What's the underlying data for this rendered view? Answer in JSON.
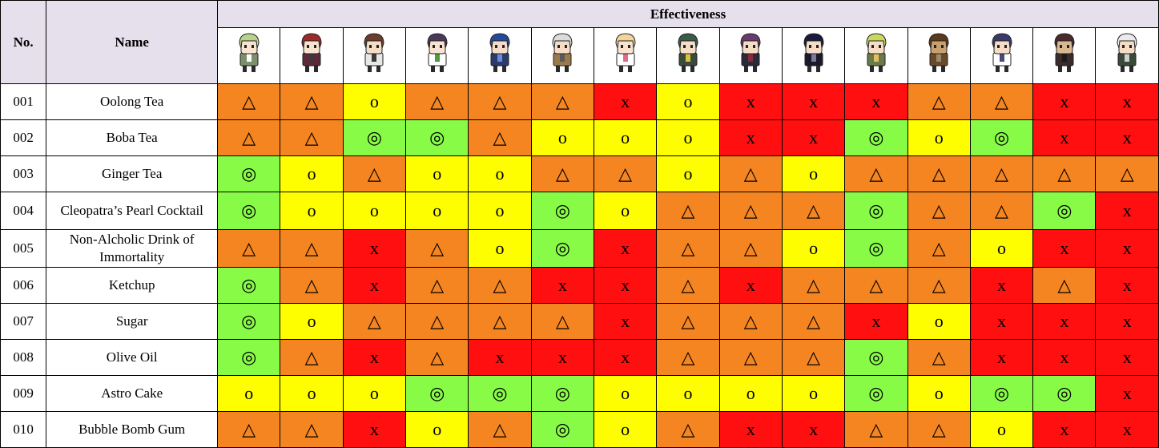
{
  "headers": {
    "no": "No.",
    "name": "Name",
    "effectiveness": "Effectiveness"
  },
  "characters": [
    {
      "icon": "character-portrait-1"
    },
    {
      "icon": "character-portrait-2"
    },
    {
      "icon": "character-portrait-3"
    },
    {
      "icon": "character-portrait-4"
    },
    {
      "icon": "character-portrait-5"
    },
    {
      "icon": "character-portrait-6"
    },
    {
      "icon": "character-portrait-7"
    },
    {
      "icon": "character-portrait-8"
    },
    {
      "icon": "character-portrait-9"
    },
    {
      "icon": "character-portrait-10"
    },
    {
      "icon": "character-portrait-11"
    },
    {
      "icon": "character-portrait-12"
    },
    {
      "icon": "character-portrait-13"
    },
    {
      "icon": "character-portrait-14"
    },
    {
      "icon": "character-portrait-15"
    }
  ],
  "rating_colors": {
    "◎": "#88fb47",
    "o": "#fefe00",
    "△": "#f58520",
    "x": "#ff0f0f"
  },
  "rows": [
    {
      "no": "001",
      "name": "Oolong Tea",
      "ratings": [
        "△",
        "△",
        "o",
        "△",
        "△",
        "△",
        "x",
        "o",
        "x",
        "x",
        "x",
        "△",
        "△",
        "x",
        "x"
      ]
    },
    {
      "no": "002",
      "name": "Boba Tea",
      "ratings": [
        "△",
        "△",
        "◎",
        "◎",
        "△",
        "o",
        "o",
        "o",
        "x",
        "x",
        "◎",
        "o",
        "◎",
        "x",
        "x"
      ]
    },
    {
      "no": "003",
      "name": "Ginger Tea",
      "ratings": [
        "◎",
        "o",
        "△",
        "o",
        "o",
        "△",
        "△",
        "o",
        "△",
        "o",
        "△",
        "△",
        "△",
        "△",
        "△"
      ]
    },
    {
      "no": "004",
      "name": "Cleopatra’s Pearl Cocktail",
      "ratings": [
        "◎",
        "o",
        "o",
        "o",
        "o",
        "◎",
        "o",
        "△",
        "△",
        "△",
        "◎",
        "△",
        "△",
        "◎",
        "x"
      ]
    },
    {
      "no": "005",
      "name": "Non-Alcholic Drink of Immortality",
      "ratings": [
        "△",
        "△",
        "x",
        "△",
        "o",
        "◎",
        "x",
        "△",
        "△",
        "o",
        "◎",
        "△",
        "o",
        "x",
        "x"
      ]
    },
    {
      "no": "006",
      "name": "Ketchup",
      "ratings": [
        "◎",
        "△",
        "x",
        "△",
        "△",
        "x",
        "x",
        "△",
        "x",
        "△",
        "△",
        "△",
        "x",
        "△",
        "x"
      ]
    },
    {
      "no": "007",
      "name": "Sugar",
      "ratings": [
        "◎",
        "o",
        "△",
        "△",
        "△",
        "△",
        "x",
        "△",
        "△",
        "△",
        "x",
        "o",
        "x",
        "x",
        "x"
      ]
    },
    {
      "no": "008",
      "name": "Olive Oil",
      "ratings": [
        "◎",
        "△",
        "x",
        "△",
        "x",
        "x",
        "x",
        "△",
        "△",
        "△",
        "◎",
        "△",
        "x",
        "x",
        "x"
      ]
    },
    {
      "no": "009",
      "name": "Astro Cake",
      "ratings": [
        "o",
        "o",
        "o",
        "◎",
        "◎",
        "◎",
        "o",
        "o",
        "o",
        "o",
        "◎",
        "o",
        "◎",
        "◎",
        "x"
      ]
    },
    {
      "no": "010",
      "name": "Bubble Bomb Gum",
      "ratings": [
        "△",
        "△",
        "x",
        "o",
        "△",
        "◎",
        "o",
        "△",
        "x",
        "x",
        "△",
        "△",
        "o",
        "x",
        "x"
      ]
    }
  ]
}
